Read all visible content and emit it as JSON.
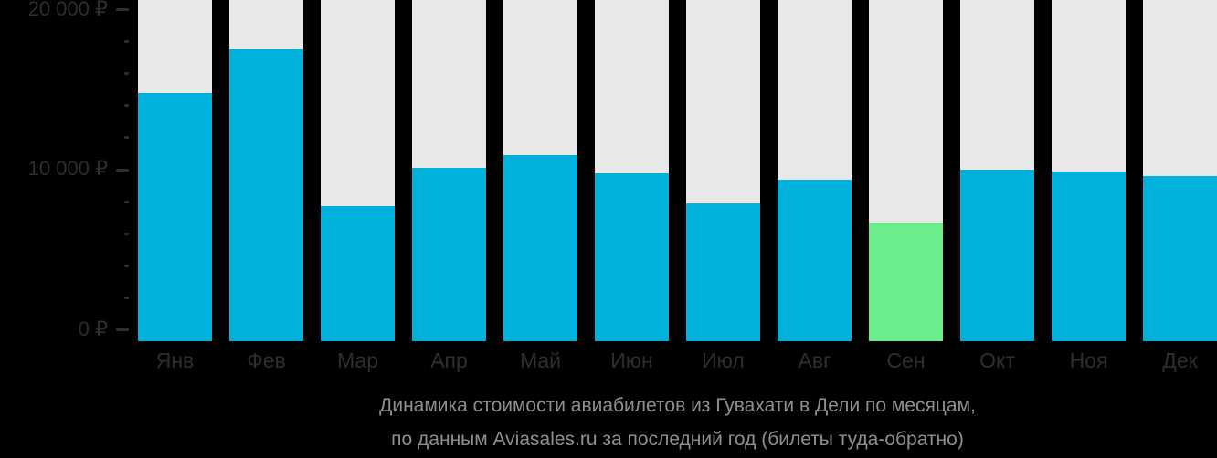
{
  "caption": {
    "line1": "Динамика стоимости авиабилетов из Гувахати в Дели по месяцам,",
    "line2": "по данным Aviasales.ru за последний год (билеты туда-обратно)"
  },
  "chart_data": {
    "type": "bar",
    "title": "Динамика стоимости авиабилетов из Гувахати в Дели по месяцам, по данным Aviasales.ru за последний год (билеты туда-обратно)",
    "categories": [
      "Янв",
      "Фев",
      "Мар",
      "Апр",
      "Май",
      "Июн",
      "Июл",
      "Авг",
      "Сен",
      "Окт",
      "Ноя",
      "Дек"
    ],
    "values": [
      14800,
      17500,
      7700,
      10100,
      10900,
      9800,
      7900,
      9400,
      6700,
      10000,
      9900,
      9600
    ],
    "highlight_index": 8,
    "highlight_meaning": "cheapest month",
    "currency": "₽",
    "ylim": [
      0,
      20000
    ],
    "y_ticks": [
      {
        "value": 20000,
        "label": "20 000 ₽"
      },
      {
        "value": 10000,
        "label": "10 000 ₽"
      },
      {
        "value": 0,
        "label": "0 ₽"
      }
    ],
    "minor_tick_step": 2000,
    "grid": false,
    "legend": "none",
    "colors": {
      "background": "#000000",
      "column_bg": "#E8E8E8",
      "bar": "#00B1DC",
      "bar_highlight": "#69EE8B",
      "axis_text": "#2E2E2E",
      "tick": "#2E2E2E",
      "caption_text": "#8F8F8F"
    }
  }
}
